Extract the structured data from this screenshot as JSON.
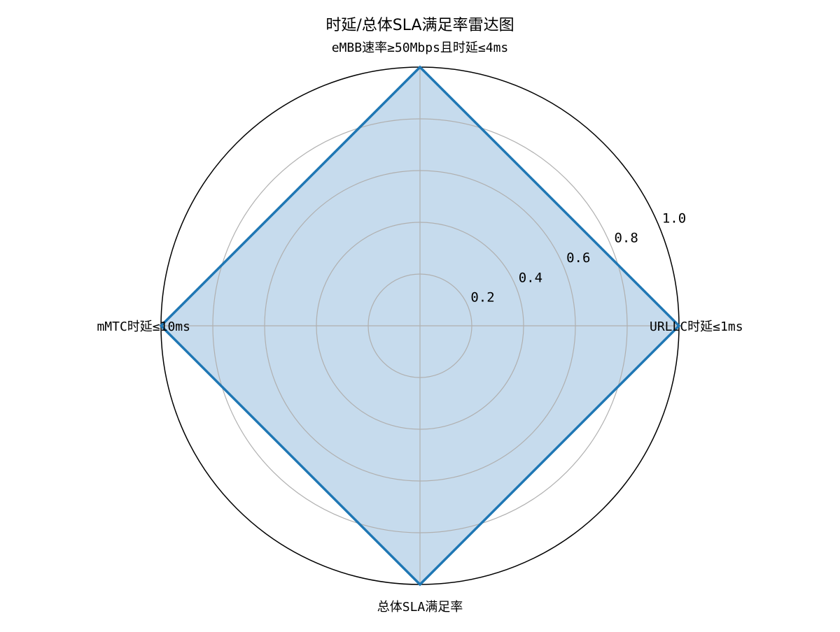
{
  "chart_data": {
    "type": "radar",
    "title": "时延/总体SLA满足率雷达图",
    "categories": [
      "URLLC时延≤1ms",
      "eMBB速率≥50Mbps且时延≤4ms",
      "mMTC时延≤10ms",
      "总体SLA满足率"
    ],
    "series": [
      {
        "values": [
          1.0,
          1.0,
          1.0,
          1.0
        ]
      }
    ],
    "rlim": [
      0,
      1.0
    ],
    "r_ticks": [
      0.2,
      0.4,
      0.6,
      0.8,
      1.0
    ],
    "r_tick_labels": [
      "0.2",
      "0.4",
      "0.6",
      "0.8",
      "1.0"
    ],
    "grid": true,
    "colors": {
      "line": "#1f77b4",
      "fill": "#c6dbed",
      "grid": "#b0b0b0",
      "outer": "#000000"
    }
  }
}
